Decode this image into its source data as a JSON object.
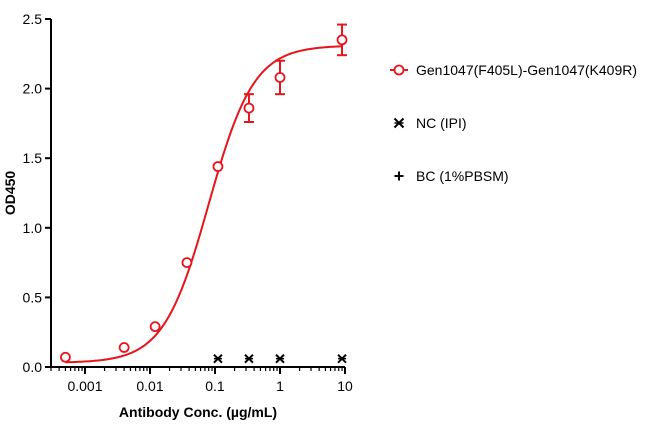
{
  "chart_data": {
    "type": "scatter",
    "title": "",
    "xlabel": "Antibody Conc. (µg/mL)",
    "ylabel": "OD450",
    "x_scale": "log",
    "xlim": [
      0.0003,
      10
    ],
    "ylim": [
      0,
      2.5
    ],
    "x_ticks": [
      {
        "value": 0.001,
        "label": "0.001"
      },
      {
        "value": 0.01,
        "label": "0.01"
      },
      {
        "value": 0.1,
        "label": "0.1"
      },
      {
        "value": 1,
        "label": "1"
      },
      {
        "value": 10,
        "label": "10"
      }
    ],
    "y_ticks": [
      {
        "value": 0,
        "label": "0.0"
      },
      {
        "value": 0.5,
        "label": "0.5"
      },
      {
        "value": 1.0,
        "label": "1.0"
      },
      {
        "value": 1.5,
        "label": "1.5"
      },
      {
        "value": 2.0,
        "label": "2.0"
      },
      {
        "value": 2.5,
        "label": "2.5"
      }
    ],
    "grid": false,
    "legend_position": "right",
    "series": [
      {
        "name": "Gen1047(F405L)-Gen1047(K409R)",
        "color": "#e8141c",
        "marker": "circle",
        "fit_curve": true,
        "x": [
          0.0005,
          0.004,
          0.012,
          0.037,
          0.111,
          0.333,
          1.0,
          9.0
        ],
        "y": [
          0.07,
          0.14,
          0.29,
          0.75,
          1.44,
          1.86,
          2.08,
          2.35
        ],
        "error": [
          0,
          0,
          0,
          0,
          0,
          0.1,
          0.12,
          0.11
        ]
      },
      {
        "name": "NC (IPI)",
        "color": "#000000",
        "marker": "x",
        "fit_curve": false,
        "x": [
          0.111,
          0.333,
          1.0,
          9.0
        ],
        "y": [
          0.06,
          0.06,
          0.06,
          0.06
        ],
        "error": [
          0,
          0,
          0,
          0
        ]
      },
      {
        "name": "BC (1%PBSM)",
        "color": "#000000",
        "marker": "plus",
        "fit_curve": false,
        "x": [],
        "y": [],
        "error": []
      }
    ],
    "fit": {
      "bottom": 0.03,
      "top": 2.31,
      "ec50": 0.08,
      "hill": 1.25
    }
  }
}
